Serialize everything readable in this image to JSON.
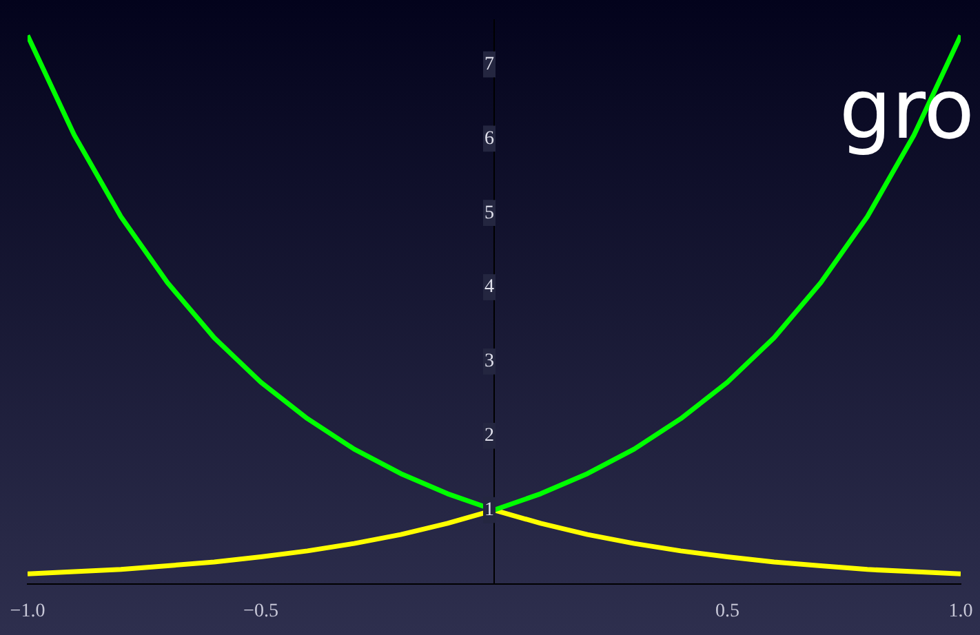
{
  "chart_data": {
    "type": "line",
    "x": [
      -1,
      -0.9,
      -0.8,
      -0.7,
      -0.6,
      -0.5,
      -0.4,
      -0.3,
      -0.2,
      -0.1,
      0,
      0.1,
      0.2,
      0.3,
      0.4,
      0.5,
      0.6,
      0.7,
      0.8,
      0.9,
      1
    ],
    "series": [
      {
        "color": "#00ff00",
        "values": [
          7.39,
          6.05,
          4.95,
          4.06,
          3.32,
          2.72,
          2.23,
          1.82,
          1.49,
          1.22,
          1,
          1.22,
          1.49,
          1.82,
          2.23,
          2.72,
          3.32,
          4.06,
          4.95,
          6.05,
          7.39
        ]
      },
      {
        "color": "#ffff00",
        "values": [
          0.14,
          0.17,
          0.2,
          0.25,
          0.3,
          0.37,
          0.45,
          0.55,
          0.67,
          0.82,
          1,
          0.82,
          0.67,
          0.55,
          0.45,
          0.37,
          0.3,
          0.25,
          0.2,
          0.17,
          0.14
        ]
      }
    ],
    "xlim": [
      -1,
      1
    ],
    "ylim": [
      0,
      7.6
    ],
    "xticks": [
      {
        "value": -1,
        "label": "−1.0"
      },
      {
        "value": -0.5,
        "label": "−0.5"
      },
      {
        "value": 0.5,
        "label": "0.5"
      },
      {
        "value": 1,
        "label": "1.0"
      }
    ],
    "yticks": [
      1,
      2,
      3,
      4,
      5,
      6,
      7
    ],
    "annotations": [
      "gro"
    ],
    "grid": false,
    "legend": false,
    "marker": "none",
    "line_style": "solid"
  }
}
